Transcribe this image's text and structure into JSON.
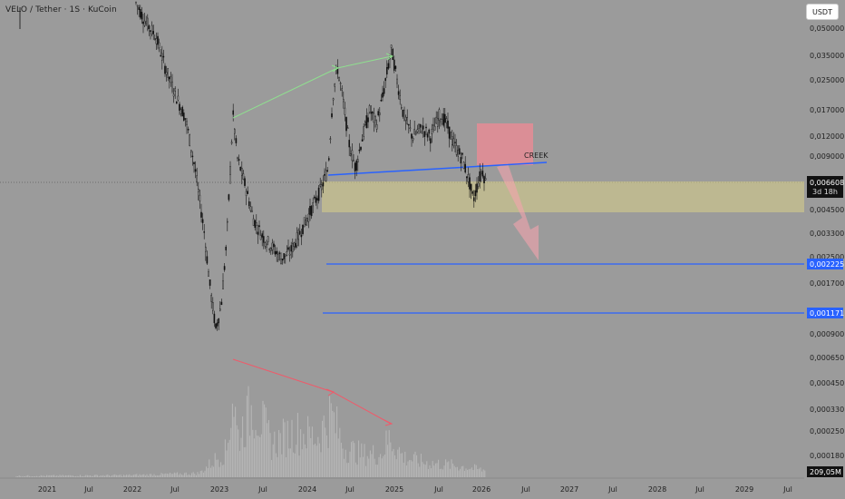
{
  "header": {
    "title": "VELO / Tether · 1S · KuCoin",
    "currency": "USDT"
  },
  "chart_data": {
    "type": "candlestick",
    "scale": "log",
    "x_ticks": [
      "2021",
      "Jul",
      "2022",
      "Jul",
      "2023",
      "Jul",
      "2024",
      "Jul",
      "2025",
      "Jul",
      "2026",
      "Jul",
      "2027",
      "Jul",
      "2028",
      "Jul",
      "2029",
      "Jul"
    ],
    "y_ticks": [
      "0,050000",
      "0,035000",
      "0,025000",
      "0,017000",
      "0,012000",
      "0,009000",
      "0,004500",
      "0,003300",
      "0,002500",
      "0,001700",
      "0,000900",
      "0,000650",
      "0,000450",
      "0,000330",
      "0,000250",
      "0,000180"
    ],
    "y_tick_values": [
      0.05,
      0.035,
      0.025,
      0.017,
      0.012,
      0.009,
      0.0045,
      0.0033,
      0.0025,
      0.0017,
      0.0009,
      0.00065,
      0.00045,
      0.00033,
      0.00025,
      0.00018
    ],
    "current_price": {
      "label": "0,006608",
      "value": 0.006608,
      "countdown": "3d 18h"
    },
    "levels": [
      {
        "label": "0,002225",
        "value": 0.002225
      },
      {
        "label": "0,001171",
        "value": 0.001171
      }
    ],
    "volume_label": "209,05M",
    "annotations": [
      "CREEK"
    ],
    "colors": {
      "background": "#9b9b9b",
      "candle": "#111111",
      "support_line": "#2962ff",
      "demand_zone": "#d8d089",
      "supply_zone": "#f08a94",
      "divergence_up": "#8fe08f",
      "divergence_down": "#ef5a6a",
      "volume": "#b4b4b4"
    }
  }
}
